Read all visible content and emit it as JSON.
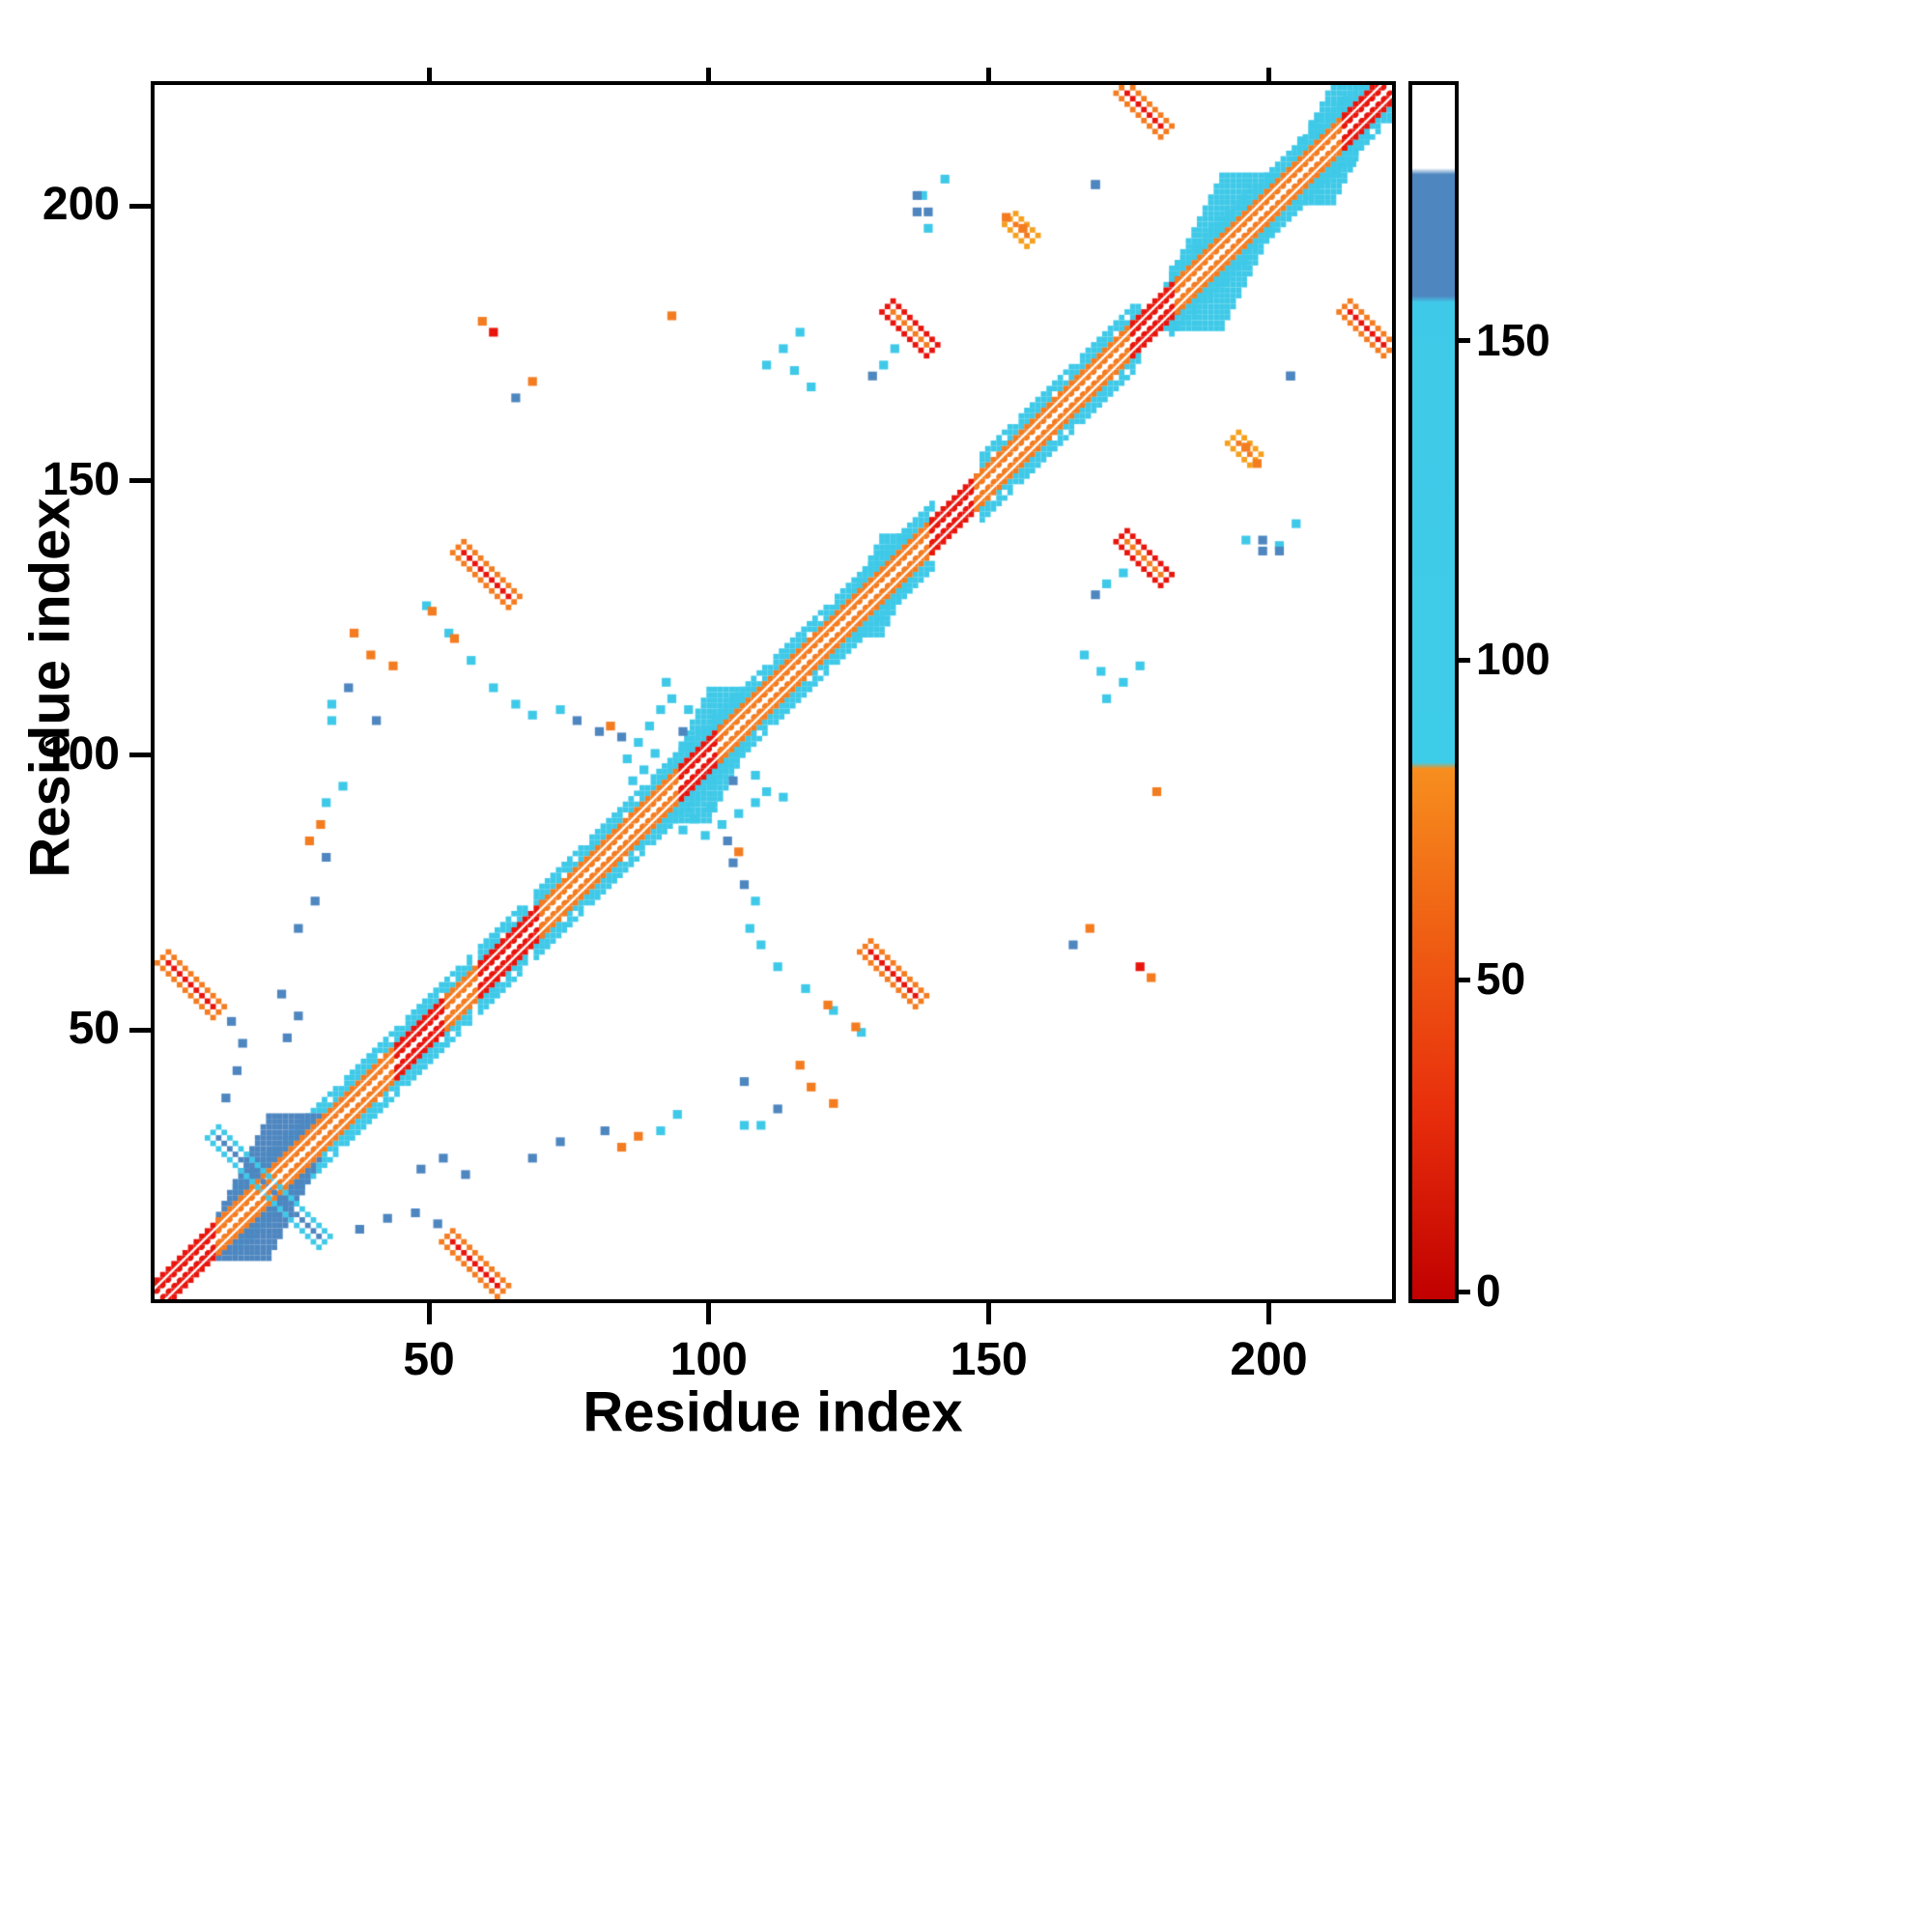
{
  "chart_data": {
    "type": "heatmap",
    "title": "",
    "xlabel": "Residue index",
    "ylabel": "Residue index",
    "x_range": [
      1,
      222
    ],
    "y_range": [
      1,
      222
    ],
    "x_ticks": [
      50,
      100,
      150,
      200
    ],
    "y_ticks": [
      50,
      100,
      150,
      200
    ],
    "grid": false,
    "symmetric": true,
    "background": "#ffffff",
    "palette": {
      "red": "#e8150d",
      "darkred": "#c10000",
      "orange": "#f47c20",
      "amber": "#f5a01e",
      "cyan": "#3fc9e8",
      "blue": "#4e86c0",
      "white": "#ffffff"
    },
    "colorbar": {
      "ticks": [
        0,
        50,
        100,
        150
      ],
      "range": [
        0,
        190
      ],
      "stops": [
        {
          "v": 0,
          "color": "#c10000"
        },
        {
          "v": 30,
          "color": "#e82f0c"
        },
        {
          "v": 60,
          "color": "#f06414"
        },
        {
          "v": 83,
          "color": "#f78e1e"
        },
        {
          "v": 84,
          "color": "#3ecde9"
        },
        {
          "v": 156,
          "color": "#3fc9e8"
        },
        {
          "v": 157,
          "color": "#4e86c0"
        },
        {
          "v": 176,
          "color": "#4e86c0"
        },
        {
          "v": 177,
          "color": "#ffffff"
        },
        {
          "v": 190,
          "color": "#ffffff"
        }
      ]
    },
    "diagonal": {
      "flank_color": "cyan",
      "core_segments": [
        {
          "from": 1,
          "to": 12,
          "color": "red"
        },
        {
          "from": 12,
          "to": 44,
          "color": "orange"
        },
        {
          "from": 44,
          "to": 53,
          "color": "red"
        },
        {
          "from": 53,
          "to": 59,
          "color": "orange"
        },
        {
          "from": 59,
          "to": 70,
          "color": "red"
        },
        {
          "from": 70,
          "to": 95,
          "color": "orange"
        },
        {
          "from": 95,
          "to": 102,
          "color": "red"
        },
        {
          "from": 102,
          "to": 140,
          "color": "orange"
        },
        {
          "from": 140,
          "to": 148,
          "color": "red"
        },
        {
          "from": 148,
          "to": 176,
          "color": "orange"
        },
        {
          "from": 176,
          "to": 184,
          "color": "red"
        },
        {
          "from": 184,
          "to": 214,
          "color": "orange"
        },
        {
          "from": 214,
          "to": 222,
          "color": "red"
        }
      ],
      "flank_segments": [
        {
          "from": 15,
          "to": 57
        },
        {
          "from": 59,
          "to": 67
        },
        {
          "from": 69,
          "to": 140
        },
        {
          "from": 149,
          "to": 177
        },
        {
          "from": 183,
          "to": 222
        }
      ],
      "wide_flanks": [
        {
          "center": 21,
          "half": 9,
          "color": "blue"
        },
        {
          "center": 100,
          "half": 8,
          "color": "cyan"
        },
        {
          "center": 131,
          "half": 5,
          "color": "cyan"
        },
        {
          "center": 192,
          "half": 10,
          "color": "cyan"
        },
        {
          "center": 212,
          "half": 7,
          "color": "cyan"
        }
      ]
    },
    "antidiagonal_blobs": [
      {
        "x": 7,
        "y": 58,
        "half": 5,
        "color": "red",
        "fringe": "orange"
      },
      {
        "x": 60,
        "y": 133,
        "half": 5,
        "color": "red",
        "fringe": "orange"
      },
      {
        "x": 136,
        "y": 178,
        "half": 4,
        "color": "orange",
        "fringe": "red"
      },
      {
        "x": 178,
        "y": 218,
        "half": 4,
        "color": "red",
        "fringe": "orange"
      },
      {
        "x": 21,
        "y": 21,
        "half": 10,
        "color": "blue",
        "fringe": "cyan"
      },
      {
        "x": 156,
        "y": 196,
        "half": 2,
        "color": "orange",
        "fringe": "amber"
      }
    ],
    "dots": [
      [
        13,
        37,
        "blue"
      ],
      [
        15,
        42,
        "blue"
      ],
      [
        16,
        47,
        "blue"
      ],
      [
        14,
        51,
        "blue"
      ],
      [
        24,
        48,
        "blue"
      ],
      [
        26,
        52,
        "blue"
      ],
      [
        23,
        56,
        "blue"
      ],
      [
        26,
        68,
        "blue"
      ],
      [
        29,
        73,
        "blue"
      ],
      [
        31,
        81,
        "blue"
      ],
      [
        28,
        84,
        "orange"
      ],
      [
        30,
        87,
        "orange"
      ],
      [
        31,
        91,
        "cyan"
      ],
      [
        34,
        94,
        "cyan"
      ],
      [
        40,
        106,
        "blue"
      ],
      [
        32,
        106,
        "cyan"
      ],
      [
        32,
        109,
        "cyan"
      ],
      [
        35,
        112,
        "blue"
      ],
      [
        36,
        122,
        "orange"
      ],
      [
        39,
        118,
        "orange"
      ],
      [
        43,
        116,
        "orange"
      ],
      [
        49,
        127,
        "cyan"
      ],
      [
        53,
        122,
        "cyan"
      ],
      [
        50,
        126,
        "orange"
      ],
      [
        54,
        121,
        "orange"
      ],
      [
        57,
        117,
        "cyan"
      ],
      [
        61,
        112,
        "cyan"
      ],
      [
        65,
        109,
        "cyan"
      ],
      [
        68,
        107,
        "cyan"
      ],
      [
        73,
        108,
        "cyan"
      ],
      [
        76,
        106,
        "blue"
      ],
      [
        80,
        104,
        "blue"
      ],
      [
        82,
        105,
        "orange"
      ],
      [
        84,
        103,
        "blue"
      ],
      [
        85,
        99,
        "cyan"
      ],
      [
        86,
        95,
        "cyan"
      ],
      [
        87,
        102,
        "cyan"
      ],
      [
        88,
        97,
        "cyan"
      ],
      [
        89,
        105,
        "cyan"
      ],
      [
        90,
        100,
        "cyan"
      ],
      [
        91,
        108,
        "cyan"
      ],
      [
        92,
        113,
        "cyan"
      ],
      [
        93,
        110,
        "cyan"
      ],
      [
        95,
        104,
        "blue"
      ],
      [
        96,
        108,
        "cyan"
      ],
      [
        61,
        177,
        "red"
      ],
      [
        59,
        179,
        "orange"
      ],
      [
        65,
        165,
        "blue"
      ],
      [
        68,
        168,
        "orange"
      ],
      [
        93,
        180,
        "orange"
      ],
      [
        110,
        171,
        "cyan"
      ],
      [
        113,
        174,
        "cyan"
      ],
      [
        116,
        177,
        "cyan"
      ],
      [
        115,
        170,
        "cyan"
      ],
      [
        118,
        167,
        "cyan"
      ],
      [
        129,
        169,
        "blue"
      ],
      [
        131,
        171,
        "cyan"
      ],
      [
        133,
        174,
        "cyan"
      ],
      [
        137,
        199,
        "blue"
      ],
      [
        138,
        202,
        "cyan"
      ],
      [
        142,
        205,
        "cyan"
      ],
      [
        139,
        196,
        "cyan"
      ],
      [
        153,
        198,
        "orange"
      ],
      [
        156,
        196,
        "orange"
      ],
      [
        169,
        204,
        "blue"
      ],
      [
        199,
        139,
        "blue"
      ],
      [
        202,
        137,
        "blue"
      ],
      [
        204,
        169,
        "blue"
      ],
      [
        212,
        206,
        "cyan"
      ],
      [
        215,
        208,
        "cyan"
      ]
    ]
  }
}
